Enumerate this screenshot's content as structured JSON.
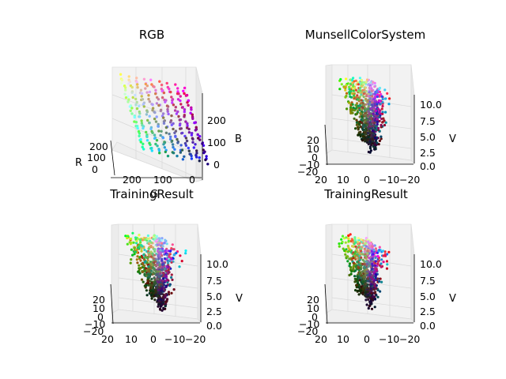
{
  "chart_data": [
    {
      "type": "scatter",
      "title": "RGB",
      "xlabel": "R",
      "ylabel": "G",
      "zlabel": "B",
      "x_ticks": [
        "200",
        "100",
        "0"
      ],
      "y_ticks": [
        "200",
        "100",
        "0"
      ],
      "z_ticks": [
        "200",
        "100",
        "0"
      ],
      "xlim": [
        0,
        255
      ],
      "ylim": [
        0,
        255
      ],
      "zlim": [
        0,
        255
      ],
      "projection": "3d"
    },
    {
      "type": "scatter",
      "title": "MunsellColorSystem",
      "zlabel": "V",
      "x_ticks": [
        "20",
        "10",
        "0",
        "−10",
        "−20"
      ],
      "y_ticks": [
        "20",
        "10",
        "0",
        "−10",
        "−20"
      ],
      "z_ticks": [
        "10.0",
        "7.5",
        "5.0",
        "2.5",
        "0.0"
      ],
      "xlim": [
        -20,
        20
      ],
      "ylim": [
        -20,
        20
      ],
      "zlim": [
        0,
        10
      ],
      "projection": "3d"
    },
    {
      "type": "scatter",
      "title": "TrainingResult",
      "zlabel": "V",
      "x_ticks": [
        "20",
        "10",
        "0",
        "−10",
        "−20"
      ],
      "y_ticks": [
        "20",
        "10",
        "0",
        "−10",
        "−20"
      ],
      "z_ticks": [
        "10.0",
        "7.5",
        "5.0",
        "2.5",
        "0.0"
      ],
      "xlim": [
        -20,
        20
      ],
      "ylim": [
        -20,
        20
      ],
      "zlim": [
        0,
        10
      ],
      "projection": "3d"
    },
    {
      "type": "scatter",
      "title": "TrainingResult",
      "zlabel": "V",
      "x_ticks": [
        "20",
        "10",
        "0",
        "−10",
        "−20"
      ],
      "y_ticks": [
        "20",
        "10",
        "0",
        "−10",
        "−20"
      ],
      "z_ticks": [
        "10.0",
        "7.5",
        "5.0",
        "2.5",
        "0.0"
      ],
      "xlim": [
        -20,
        20
      ],
      "ylim": [
        -20,
        20
      ],
      "zlim": [
        0,
        10
      ],
      "projection": "3d"
    }
  ]
}
